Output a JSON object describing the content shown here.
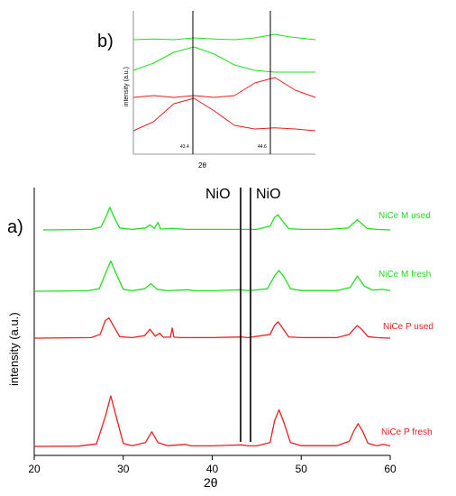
{
  "panel_labels": {
    "a": "a)",
    "b": "b)"
  },
  "main": {
    "xlabel": "2θ",
    "ylabel": "intensity (a.u.)",
    "xticks": [
      "20",
      "30",
      "40",
      "50",
      "60"
    ],
    "marker_labels": [
      "NiO",
      "NiO"
    ]
  },
  "inset": {
    "xlabel": "2θ",
    "ylabel": "intensity (a.u.)",
    "line_labels": [
      "43.4",
      "44.6"
    ]
  },
  "chart_data": [
    {
      "type": "line",
      "xlim": [
        20,
        60
      ],
      "grid": false,
      "legend": "none",
      "vlines": [
        43.4,
        44.6
      ],
      "series": [
        {
          "name": "NiCe M used",
          "color": "#22dd22",
          "x": [
            21,
            26.4,
            27.5,
            28.1,
            28.5,
            28.9,
            29.6,
            31,
            32.5,
            33.0,
            33.5,
            33.9,
            34.2,
            34.5,
            35.6,
            37,
            40,
            43,
            45,
            46.5,
            47.0,
            47.4,
            47.9,
            48.6,
            50,
            53,
            55.3,
            55.8,
            56.3,
            56.8,
            57.4,
            58.5,
            60
          ],
          "y": [
            0,
            0.02,
            0.12,
            0.55,
            0.9,
            0.55,
            0.08,
            0.02,
            0.08,
            0.2,
            0.06,
            0.3,
            0.04,
            0.04,
            0.06,
            0.02,
            0.02,
            0.02,
            0.02,
            0.15,
            0.5,
            0.6,
            0.35,
            0.05,
            0.02,
            0.02,
            0.08,
            0.25,
            0.4,
            0.25,
            0.06,
            0.02,
            0
          ]
        },
        {
          "name": "NiCe M fresh",
          "color": "#22dd22",
          "x": [
            20,
            26,
            27.3,
            28.0,
            28.6,
            29.2,
            30,
            31,
            32.4,
            33.1,
            33.8,
            35,
            37.2,
            38,
            40,
            43.3,
            44,
            46.2,
            47.0,
            47.5,
            48.0,
            48.8,
            50,
            54,
            55.5,
            56.3,
            57.1,
            58,
            59.2,
            60
          ],
          "y": [
            0,
            0.02,
            0.1,
            0.7,
            1.2,
            0.7,
            0.08,
            0.02,
            0.1,
            0.3,
            0.08,
            0.02,
            0.06,
            0.02,
            0.02,
            0.06,
            0.02,
            0.1,
            0.6,
            0.82,
            0.6,
            0.1,
            0.03,
            0.03,
            0.15,
            0.6,
            0.2,
            0.05,
            0.08,
            0.02
          ]
        },
        {
          "name": "NiCe P used",
          "color": "#e82020",
          "x": [
            20,
            26.4,
            27.4,
            28.0,
            28.4,
            28.8,
            29.6,
            31,
            32.4,
            33.0,
            33.6,
            34.1,
            34.5,
            35.3,
            35.5,
            35.7,
            36.5,
            40,
            43.3,
            44,
            46.5,
            47.0,
            47.4,
            47.9,
            48.6,
            50,
            54,
            55.4,
            55.9,
            56.3,
            56.8,
            57.5,
            58.5,
            60
          ],
          "y": [
            0,
            0.02,
            0.15,
            0.7,
            0.8,
            0.55,
            0.06,
            0.02,
            0.1,
            0.35,
            0.08,
            0.2,
            0.04,
            0.04,
            0.4,
            0.04,
            0.02,
            0.02,
            0.05,
            0.02,
            0.15,
            0.5,
            0.65,
            0.4,
            0.05,
            0.02,
            0.02,
            0.15,
            0.35,
            0.5,
            0.35,
            0.06,
            0.02,
            0
          ]
        },
        {
          "name": "NiCe P fresh",
          "color": "#e82020",
          "x": [
            20,
            25,
            27,
            28.0,
            28.6,
            29.2,
            30,
            31,
            32.5,
            33.2,
            33.9,
            35,
            37.0,
            37.6,
            38.5,
            40,
            43.3,
            44,
            45,
            46.5,
            47.0,
            47.5,
            48.0,
            48.8,
            50,
            54,
            55.4,
            55.9,
            56.4,
            56.9,
            57.5,
            58.5,
            59.2,
            60
          ],
          "y": [
            0,
            0.01,
            0.1,
            1.2,
            2.0,
            1.2,
            0.12,
            0.03,
            0.15,
            0.58,
            0.15,
            0.03,
            0.08,
            0.02,
            0.02,
            0.02,
            0.06,
            0.02,
            0.02,
            0.15,
            1.0,
            1.45,
            1.0,
            0.15,
            0.03,
            0.03,
            0.2,
            0.6,
            0.9,
            0.6,
            0.12,
            0.03,
            0.08,
            0.02
          ]
        }
      ]
    },
    {
      "type": "line",
      "xlabel": "2θ",
      "ylabel": "intensity (a.u.)",
      "xlim": [
        42.5,
        45.2
      ],
      "vlines": [
        43.4,
        44.6
      ],
      "series": [
        {
          "name": "NiCe M used",
          "color": "#22dd22",
          "x": [
            42.5,
            42.8,
            43.1,
            43.4,
            43.7,
            44.0,
            44.3,
            44.6,
            44.8,
            45.2
          ],
          "y": [
            0.0,
            0.02,
            0.0,
            0.05,
            0.02,
            0.0,
            0.05,
            0.15,
            0.08,
            0.0
          ]
        },
        {
          "name": "NiCe M fresh",
          "color": "#22dd22",
          "x": [
            42.5,
            42.8,
            43.1,
            43.4,
            43.7,
            44.0,
            44.3,
            44.6,
            44.9,
            45.2
          ],
          "y": [
            0.05,
            0.25,
            0.55,
            0.7,
            0.5,
            0.2,
            0.05,
            0.0,
            0.0,
            0.0
          ]
        },
        {
          "name": "NiCe P used",
          "color": "#e82020",
          "x": [
            42.5,
            42.8,
            43.1,
            43.4,
            43.7,
            44.0,
            44.3,
            44.6,
            44.9,
            45.2
          ],
          "y": [
            0.0,
            0.05,
            0.0,
            0.05,
            0.0,
            0.05,
            0.4,
            0.55,
            0.2,
            0.0
          ]
        },
        {
          "name": "NiCe P fresh",
          "color": "#e82020",
          "x": [
            42.5,
            42.8,
            43.1,
            43.4,
            43.7,
            44.0,
            44.3,
            44.6,
            44.9,
            45.2
          ],
          "y": [
            0.0,
            0.25,
            0.75,
            0.9,
            0.55,
            0.15,
            0.05,
            0.08,
            0.05,
            0.0
          ]
        }
      ]
    }
  ]
}
